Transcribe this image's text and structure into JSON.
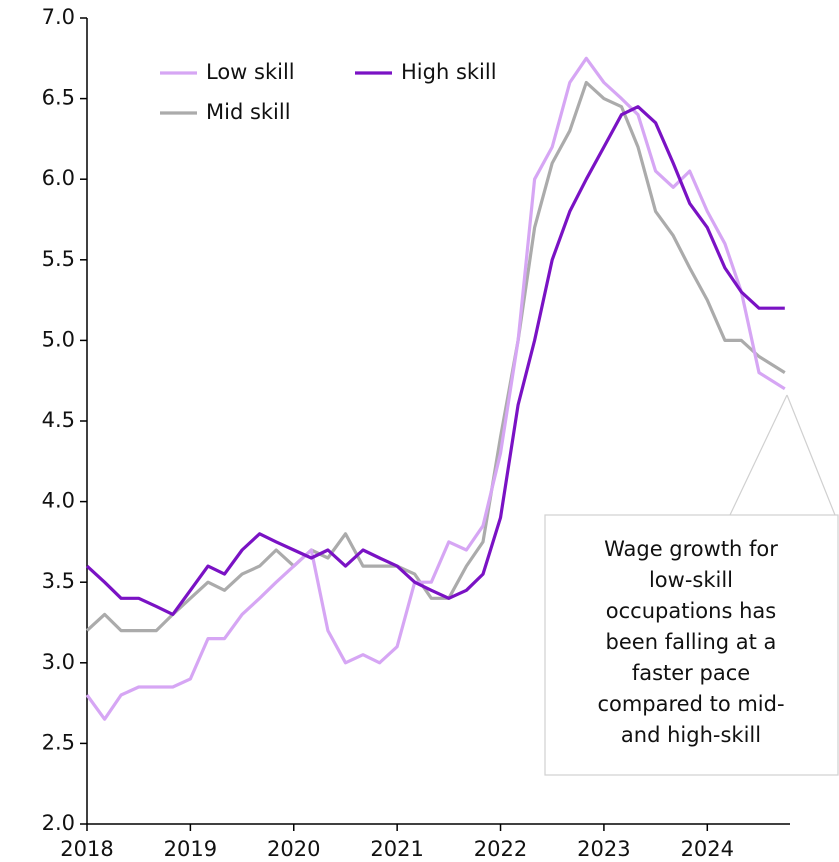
{
  "chart_data": {
    "type": "line",
    "x": [
      2018.0,
      2018.17,
      2018.33,
      2018.5,
      2018.67,
      2018.83,
      2019.0,
      2019.17,
      2019.33,
      2019.5,
      2019.67,
      2019.83,
      2020.0,
      2020.17,
      2020.33,
      2020.5,
      2020.67,
      2020.83,
      2021.0,
      2021.17,
      2021.33,
      2021.5,
      2021.67,
      2021.83,
      2022.0,
      2022.17,
      2022.33,
      2022.5,
      2022.67,
      2022.83,
      2023.0,
      2023.17,
      2023.33,
      2023.5,
      2023.67,
      2023.83,
      2024.0,
      2024.17,
      2024.33,
      2024.5,
      2024.75
    ],
    "series": [
      {
        "name": "Low skill",
        "color": "#d6a6f4",
        "values": [
          2.8,
          2.65,
          2.8,
          2.85,
          2.85,
          2.85,
          2.9,
          3.15,
          3.15,
          3.3,
          3.4,
          3.5,
          3.6,
          3.7,
          3.2,
          3.0,
          3.05,
          3.0,
          3.1,
          3.5,
          3.5,
          3.75,
          3.7,
          3.85,
          4.3,
          5.0,
          6.0,
          6.2,
          6.6,
          6.75,
          6.6,
          6.5,
          6.4,
          6.05,
          5.95,
          6.05,
          5.8,
          5.6,
          5.3,
          4.8,
          4.7
        ]
      },
      {
        "name": "High skill",
        "color": "#7a12c4",
        "values": [
          3.6,
          3.5,
          3.4,
          3.4,
          3.35,
          3.3,
          3.45,
          3.6,
          3.55,
          3.7,
          3.8,
          3.75,
          3.7,
          3.65,
          3.7,
          3.6,
          3.7,
          3.65,
          3.6,
          3.5,
          3.45,
          3.4,
          3.45,
          3.55,
          3.9,
          4.6,
          5.0,
          5.5,
          5.8,
          6.0,
          6.2,
          6.4,
          6.45,
          6.35,
          6.1,
          5.85,
          5.7,
          5.45,
          5.3,
          5.2,
          5.2
        ]
      },
      {
        "name": "Mid skill",
        "color": "#ababab",
        "values": [
          3.2,
          3.3,
          3.2,
          3.2,
          3.2,
          3.3,
          3.4,
          3.5,
          3.45,
          3.55,
          3.6,
          3.7,
          3.6,
          3.7,
          3.65,
          3.8,
          3.6,
          3.6,
          3.6,
          3.55,
          3.4,
          3.4,
          3.6,
          3.75,
          4.4,
          5.0,
          5.7,
          6.1,
          6.3,
          6.6,
          6.5,
          6.45,
          6.2,
          5.8,
          5.65,
          5.45,
          5.25,
          5.0,
          5.0,
          4.9,
          4.8
        ]
      }
    ],
    "xlim": [
      2018,
      2024.8
    ],
    "xticks": [
      2018,
      2019,
      2020,
      2021,
      2022,
      2023,
      2024
    ],
    "ylim": [
      2,
      7
    ],
    "yticks": [
      {
        "value": 2,
        "label": "2.0"
      },
      2.5,
      {
        "value": 3,
        "label": "3.0"
      },
      3.5,
      {
        "value": 4,
        "label": "4.0"
      },
      4.5,
      {
        "value": 5,
        "label": "5.0"
      },
      5.5,
      {
        "value": 6,
        "label": "6.0"
      },
      6.5,
      {
        "value": 7,
        "label": "7.0"
      }
    ],
    "legend": "upper left",
    "annotation": [
      "Wage growth for",
      "low-skill",
      "occupations has",
      "been falling at a",
      "faster pace",
      "compared to mid-",
      "and high-skill"
    ]
  }
}
